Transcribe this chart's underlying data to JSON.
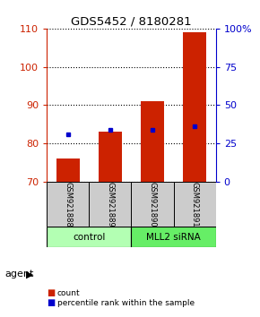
{
  "title": "GDS5452 / 8180281",
  "samples": [
    "GSM921888",
    "GSM921889",
    "GSM921890",
    "GSM921891"
  ],
  "counts": [
    76,
    83,
    91,
    109
  ],
  "percentile_pct": [
    31,
    34,
    34,
    36
  ],
  "ylim_left": [
    70,
    110
  ],
  "ylim_right": [
    0,
    100
  ],
  "yticks_left": [
    70,
    80,
    90,
    100,
    110
  ],
  "yticks_right": [
    0,
    25,
    50,
    75,
    100
  ],
  "ytick_labels_right": [
    "0",
    "25",
    "50",
    "75",
    "100%"
  ],
  "bar_color": "#cc2200",
  "marker_color": "#0000cc",
  "groups": [
    {
      "label": "control",
      "cols": [
        0,
        1
      ],
      "color": "#b3ffb3"
    },
    {
      "label": "MLL2 siRNA",
      "cols": [
        2,
        3
      ],
      "color": "#66ee66"
    }
  ],
  "legend_items": [
    {
      "label": "count",
      "color": "#cc2200"
    },
    {
      "label": "percentile rank within the sample",
      "color": "#0000cc"
    }
  ],
  "bar_width": 0.55,
  "background_color": "#ffffff",
  "xlabel_area_color": "#cccccc",
  "agent_label": "agent"
}
